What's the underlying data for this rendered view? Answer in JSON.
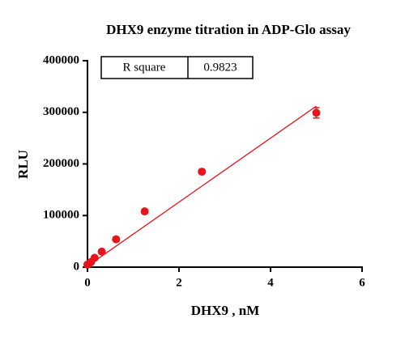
{
  "chart_data": {
    "type": "scatter",
    "title": "DHX9 enzyme titration in ADP-Glo assay",
    "x_label": "DHX9 , nM",
    "y_label": "RLU",
    "x": [
      0,
      0.039,
      0.078,
      0.156,
      0.3125,
      0.625,
      1.25,
      2.5,
      5
    ],
    "series": [
      {
        "name": "DHX9",
        "color": "#e8141c",
        "values": [
          5000,
          7000,
          10000,
          18000,
          30000,
          54000,
          108000,
          185000,
          299000
        ],
        "errors": [
          1000,
          1000,
          1000,
          1500,
          2000,
          2500,
          3000,
          4000,
          10000
        ]
      }
    ],
    "fit": {
      "x": [
        0,
        5
      ],
      "values": [
        2000,
        312000
      ],
      "color": "#e8141c"
    },
    "stats": {
      "label": "R square",
      "value": 0.9823
    },
    "xlim": [
      0,
      6
    ],
    "ylim": [
      0,
      400000
    ],
    "xticks": [
      0,
      2,
      4,
      6
    ],
    "yticks": [
      0,
      100000,
      200000,
      300000,
      400000
    ]
  }
}
